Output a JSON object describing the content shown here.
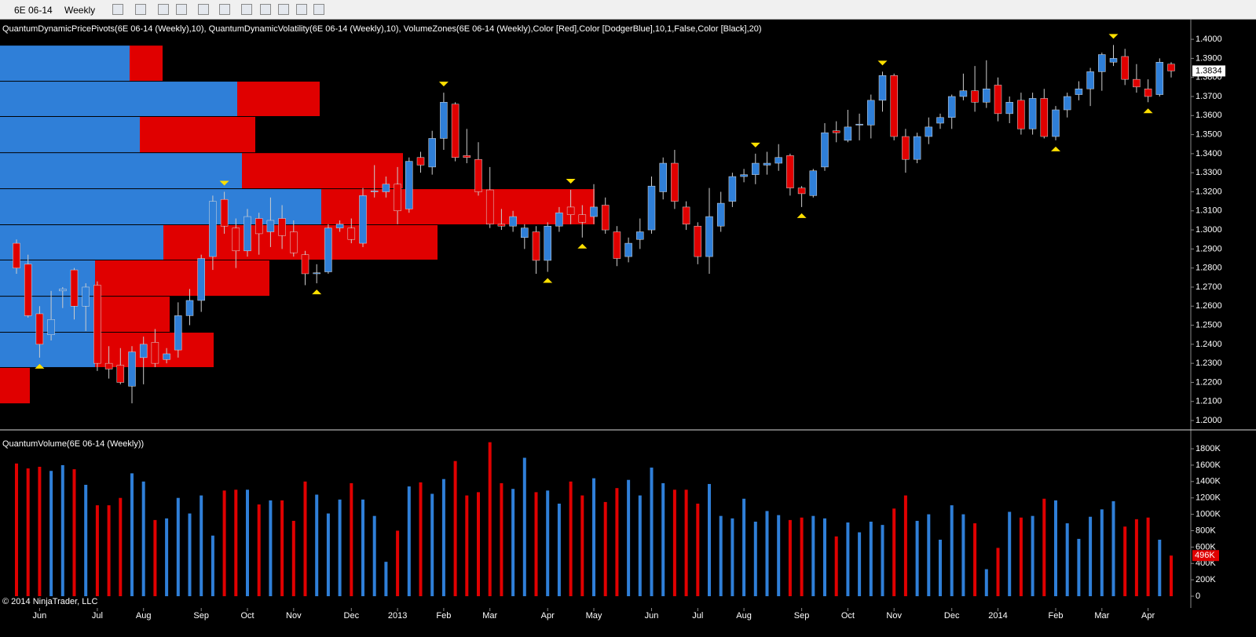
{
  "toolbar": {
    "instrument": "6E 06-14",
    "period": "Weekly"
  },
  "copyright": "© 2014 NinjaTrader, LLC",
  "chart_data": [
    {
      "type": "candlestick",
      "title": "QuantumDynamicPricePivots(6E 06-14 (Weekly),10), QuantumDynamicVolatility(6E 06-14 (Weekly),10), VolumeZones(6E 06-14 (Weekly),Color [Red],Color [DodgerBlue],10,1,False,Color [Black],20)",
      "up_color": "#2f7fd8",
      "down_color": "#e00000",
      "open": [
        1.293,
        1.282,
        1.256,
        1.245,
        1.268,
        1.279,
        1.26,
        1.271,
        1.23,
        1.229,
        1.218,
        1.233,
        1.241,
        1.232,
        1.237,
        1.255,
        1.263,
        1.286,
        1.316,
        1.301,
        1.289,
        1.306,
        1.299,
        1.306,
        1.299,
        1.287,
        1.277,
        1.278,
        1.301,
        1.301,
        1.293,
        1.32,
        1.32,
        1.324,
        1.311,
        1.338,
        1.333,
        1.348,
        1.366,
        1.339,
        1.337,
        1.321,
        1.303,
        1.302,
        1.296,
        1.299,
        1.284,
        1.302,
        1.312,
        1.308,
        1.307,
        1.313,
        1.299,
        1.286,
        1.295,
        1.3,
        1.32,
        1.335,
        1.312,
        1.302,
        1.286,
        1.302,
        1.315,
        1.328,
        1.329,
        1.334,
        1.335,
        1.339,
        1.322,
        1.318,
        1.333,
        1.352,
        1.347,
        1.355,
        1.355,
        1.368,
        1.381,
        1.349,
        1.337,
        1.349,
        1.356,
        1.359,
        1.37,
        1.373,
        1.367,
        1.376,
        1.361,
        1.368,
        1.353,
        1.369,
        1.349,
        1.363,
        1.371,
        1.374,
        1.383,
        1.388,
        1.391,
        1.379,
        1.374,
        1.371,
        1.387
      ],
      "high": [
        1.295,
        1.287,
        1.26,
        1.268,
        1.27,
        1.28,
        1.272,
        1.273,
        1.239,
        1.238,
        1.239,
        1.244,
        1.248,
        1.238,
        1.262,
        1.269,
        1.287,
        1.318,
        1.32,
        1.306,
        1.311,
        1.309,
        1.317,
        1.313,
        1.305,
        1.289,
        1.282,
        1.303,
        1.305,
        1.306,
        1.322,
        1.334,
        1.328,
        1.333,
        1.338,
        1.341,
        1.352,
        1.372,
        1.367,
        1.353,
        1.346,
        1.333,
        1.311,
        1.31,
        1.303,
        1.302,
        1.304,
        1.312,
        1.321,
        1.313,
        1.324,
        1.317,
        1.302,
        1.296,
        1.306,
        1.328,
        1.338,
        1.342,
        1.315,
        1.304,
        1.322,
        1.32,
        1.33,
        1.332,
        1.34,
        1.341,
        1.345,
        1.34,
        1.323,
        1.332,
        1.356,
        1.357,
        1.363,
        1.361,
        1.371,
        1.383,
        1.382,
        1.353,
        1.351,
        1.359,
        1.361,
        1.371,
        1.382,
        1.386,
        1.389,
        1.38,
        1.37,
        1.372,
        1.372,
        1.374,
        1.365,
        1.372,
        1.378,
        1.385,
        1.393,
        1.397,
        1.395,
        1.387,
        1.379,
        1.39,
        1.388
      ],
      "low": [
        1.277,
        1.254,
        1.233,
        1.242,
        1.259,
        1.253,
        1.247,
        1.226,
        1.222,
        1.219,
        1.209,
        1.219,
        1.228,
        1.23,
        1.233,
        1.25,
        1.257,
        1.279,
        1.298,
        1.28,
        1.286,
        1.287,
        1.291,
        1.29,
        1.286,
        1.271,
        1.272,
        1.277,
        1.299,
        1.293,
        1.291,
        1.317,
        1.317,
        1.303,
        1.309,
        1.33,
        1.329,
        1.342,
        1.336,
        1.335,
        1.318,
        1.301,
        1.3,
        1.299,
        1.29,
        1.277,
        1.278,
        1.299,
        1.303,
        1.296,
        1.303,
        1.298,
        1.281,
        1.283,
        1.29,
        1.298,
        1.316,
        1.311,
        1.3,
        1.282,
        1.277,
        1.299,
        1.312,
        1.325,
        1.324,
        1.329,
        1.331,
        1.318,
        1.312,
        1.317,
        1.331,
        1.346,
        1.346,
        1.347,
        1.348,
        1.362,
        1.347,
        1.33,
        1.335,
        1.345,
        1.353,
        1.353,
        1.368,
        1.362,
        1.364,
        1.357,
        1.356,
        1.35,
        1.35,
        1.348,
        1.347,
        1.359,
        1.368,
        1.365,
        1.373,
        1.386,
        1.376,
        1.372,
        1.367,
        1.37,
        1.38
      ],
      "close": [
        1.28,
        1.255,
        1.24,
        1.253,
        1.269,
        1.26,
        1.27,
        1.23,
        1.227,
        1.22,
        1.236,
        1.24,
        1.23,
        1.235,
        1.255,
        1.263,
        1.285,
        1.315,
        1.302,
        1.289,
        1.307,
        1.298,
        1.305,
        1.297,
        1.288,
        1.277,
        1.2775,
        1.301,
        1.303,
        1.295,
        1.318,
        1.3205,
        1.324,
        1.31,
        1.336,
        1.334,
        1.348,
        1.367,
        1.338,
        1.338,
        1.32,
        1.303,
        1.302,
        1.307,
        1.301,
        1.284,
        1.302,
        1.309,
        1.308,
        1.304,
        1.312,
        1.3,
        1.285,
        1.293,
        1.299,
        1.323,
        1.335,
        1.315,
        1.303,
        1.286,
        1.307,
        1.314,
        1.328,
        1.329,
        1.335,
        1.335,
        1.338,
        1.322,
        1.319,
        1.331,
        1.351,
        1.351,
        1.354,
        1.3555,
        1.368,
        1.381,
        1.349,
        1.337,
        1.349,
        1.354,
        1.359,
        1.37,
        1.373,
        1.367,
        1.374,
        1.361,
        1.367,
        1.353,
        1.369,
        1.349,
        1.363,
        1.37,
        1.374,
        1.383,
        1.392,
        1.39,
        1.379,
        1.375,
        1.37,
        1.388,
        1.3834
      ],
      "last_price_label": "1.3834",
      "pivot_highs": [
        18,
        37,
        48,
        64,
        75,
        95
      ],
      "pivot_lows": [
        2,
        26,
        46,
        49,
        68,
        90,
        98
      ],
      "pivot_color": "#ffe000",
      "volume_zones": [
        {
          "low": 1.3778,
          "high": 1.3967,
          "up": 165,
          "down": 42
        },
        {
          "low": 1.3593,
          "high": 1.3778,
          "up": 302,
          "down": 105
        },
        {
          "low": 1.3403,
          "high": 1.3593,
          "up": 178,
          "down": 147
        },
        {
          "low": 1.3214,
          "high": 1.3403,
          "up": 308,
          "down": 205
        },
        {
          "low": 1.3025,
          "high": 1.3214,
          "up": 409,
          "down": 348
        },
        {
          "low": 1.284,
          "high": 1.3025,
          "up": 208,
          "down": 349
        },
        {
          "low": 1.265,
          "high": 1.284,
          "up": 121,
          "down": 222
        },
        {
          "low": 1.2461,
          "high": 1.265,
          "up": 121,
          "down": 95
        },
        {
          "low": 1.2276,
          "high": 1.2461,
          "up": 121,
          "down": 151
        },
        {
          "low": 1.2086,
          "high": 1.2276,
          "up": 0,
          "down": 38
        }
      ],
      "ylim": [
        1.1959,
        1.4091
      ],
      "yticks": [
        {
          "value": 1.2,
          "label": "1.2000"
        },
        {
          "value": 1.21,
          "label": "1.2100"
        },
        {
          "value": 1.22,
          "label": "1.2200"
        },
        {
          "value": 1.23,
          "label": "1.2300"
        },
        {
          "value": 1.24,
          "label": "1.2400"
        },
        {
          "value": 1.25,
          "label": "1.2500"
        },
        {
          "value": 1.26,
          "label": "1.2600"
        },
        {
          "value": 1.27,
          "label": "1.2700"
        },
        {
          "value": 1.28,
          "label": "1.2800"
        },
        {
          "value": 1.29,
          "label": "1.2900"
        },
        {
          "value": 1.3,
          "label": "1.3000"
        },
        {
          "value": 1.31,
          "label": "1.3100"
        },
        {
          "value": 1.32,
          "label": "1.3200"
        },
        {
          "value": 1.33,
          "label": "1.3300"
        },
        {
          "value": 1.34,
          "label": "1.3400"
        },
        {
          "value": 1.35,
          "label": "1.3500"
        },
        {
          "value": 1.36,
          "label": "1.3600"
        },
        {
          "value": 1.37,
          "label": "1.3700"
        },
        {
          "value": 1.38,
          "label": "1.3800"
        },
        {
          "value": 1.39,
          "label": "1.3900"
        },
        {
          "value": 1.4,
          "label": "1.4000"
        }
      ]
    },
    {
      "type": "bar",
      "title": "QuantumVolume(6E 06-14 (Weekly))",
      "categories": [
        null,
        null,
        "Jun",
        null,
        null,
        null,
        null,
        "Jul",
        null,
        null,
        null,
        "Aug",
        null,
        null,
        null,
        null,
        "Sep",
        null,
        null,
        null,
        "Oct",
        null,
        null,
        null,
        "Nov",
        null,
        null,
        null,
        null,
        "Dec",
        null,
        null,
        null,
        "2013",
        null,
        null,
        null,
        "Feb",
        null,
        null,
        null,
        "Mar",
        null,
        null,
        null,
        null,
        "Apr",
        null,
        null,
        null,
        "May",
        null,
        null,
        null,
        null,
        "Jun",
        null,
        null,
        null,
        "Jul",
        null,
        null,
        null,
        "Aug",
        null,
        null,
        null,
        null,
        "Sep",
        null,
        null,
        null,
        "Oct",
        null,
        null,
        null,
        "Nov",
        null,
        null,
        null,
        null,
        "Dec",
        null,
        null,
        null,
        "2014",
        null,
        null,
        null,
        null,
        "Feb",
        null,
        null,
        null,
        "Mar",
        null,
        null,
        null,
        "Apr",
        null,
        null
      ],
      "values": [
        1620,
        1560,
        1580,
        1530,
        1600,
        1550,
        1360,
        1110,
        1110,
        1200,
        1500,
        1400,
        930,
        950,
        1200,
        1010,
        1230,
        740,
        1290,
        1300,
        1300,
        1120,
        1170,
        1170,
        920,
        1400,
        1240,
        1010,
        1180,
        1380,
        1180,
        980,
        420,
        800,
        1340,
        1390,
        1250,
        1430,
        1650,
        1230,
        1270,
        1880,
        1380,
        1310,
        1690,
        1270,
        1290,
        1130,
        1400,
        1230,
        1440,
        1150,
        1320,
        1420,
        1230,
        1570,
        1380,
        1300,
        1300,
        1130,
        1370,
        980,
        950,
        1190,
        910,
        1040,
        990,
        930,
        960,
        980,
        950,
        730,
        900,
        780,
        910,
        870,
        1070,
        1230,
        920,
        1000,
        690,
        1110,
        1000,
        890,
        330,
        590,
        1030,
        960,
        980,
        1190,
        1170,
        890,
        700,
        970,
        1060,
        1160,
        850,
        940,
        960,
        690,
        496
      ],
      "last_value_label": "496K",
      "ylim": [
        -115,
        1992
      ],
      "yticks": [
        0,
        {
          "value": 200,
          "label": "200K"
        },
        {
          "value": 400,
          "label": "400K"
        },
        {
          "value": 600,
          "label": "600K"
        },
        {
          "value": 800,
          "label": "800K"
        },
        {
          "value": 1000,
          "label": "1000K"
        },
        {
          "value": 1200,
          "label": "1200K"
        },
        {
          "value": 1400,
          "label": "1400K"
        },
        {
          "value": 1600,
          "label": "1600K"
        },
        {
          "value": 1800,
          "label": "1800K"
        }
      ]
    }
  ]
}
